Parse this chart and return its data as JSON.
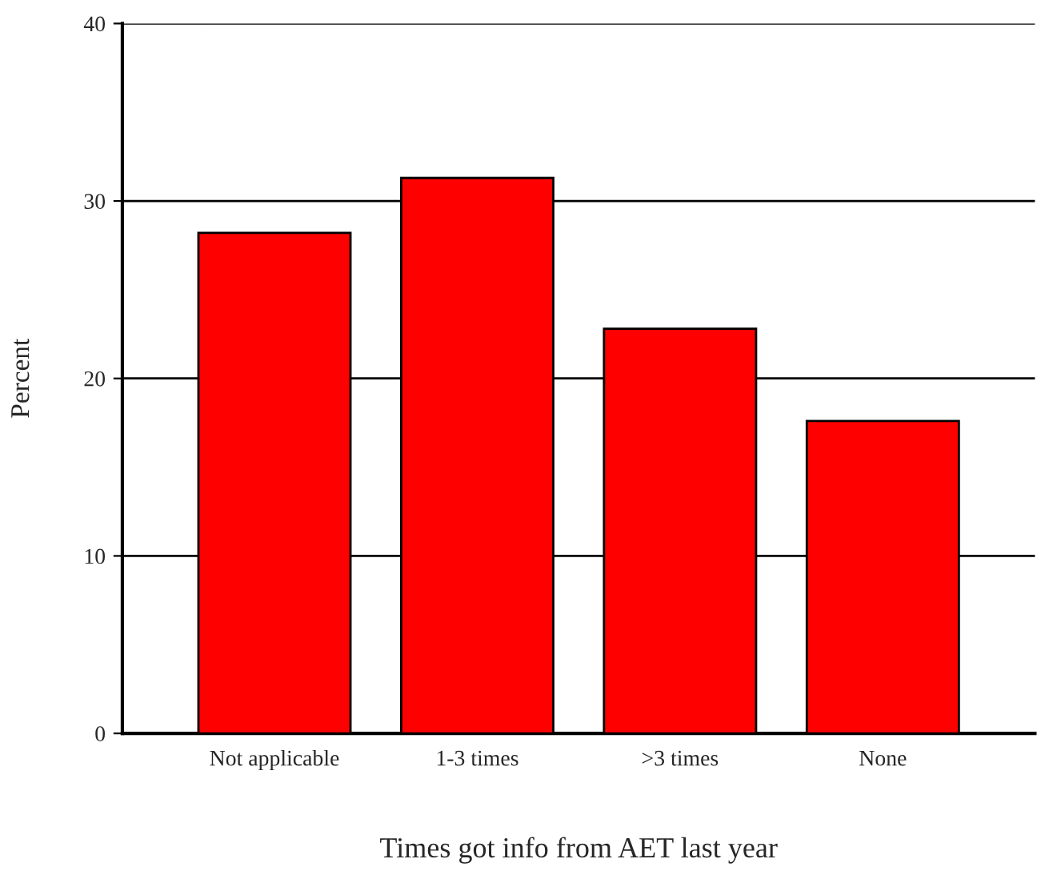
{
  "chart_data": {
    "type": "bar",
    "xlabel": "Times got info from AET last year",
    "ylabel": "Percent",
    "categories": [
      "Not applicable",
      "1-3 times",
      ">3 times",
      "None"
    ],
    "values": [
      28.2,
      31.3,
      22.8,
      17.6
    ],
    "color": "#ff0000",
    "ylim": [
      0,
      40
    ],
    "yticks": [
      0,
      10,
      20,
      30,
      40
    ],
    "grid": "y",
    "legend": false
  }
}
